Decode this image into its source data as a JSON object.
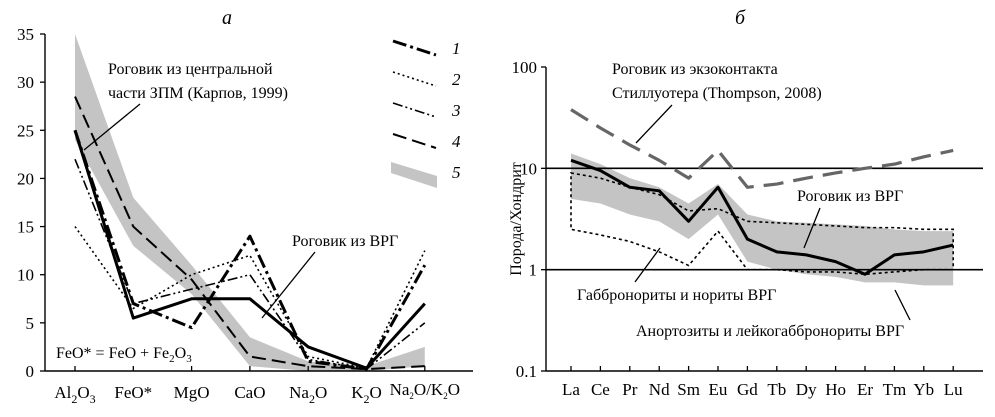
{
  "chart_data": [
    {
      "panel": "а",
      "type": "line",
      "categories": [
        "Al2O3",
        "FeO*",
        "MgO",
        "CaO",
        "Na2O",
        "K2O",
        "Na2O/K2O"
      ],
      "category_labels": [
        {
          "main": "Al",
          "sub": "2",
          "main2": "O",
          "sub2": "3"
        },
        {
          "main": "FeO*"
        },
        {
          "main": "MgO"
        },
        {
          "main": "CaO"
        },
        {
          "main": "Na",
          "sub": "2",
          "main2": "O"
        },
        {
          "main": "K",
          "sub": "2",
          "main2": "O"
        },
        {
          "main": "Na",
          "sub": "2",
          "main2": "O/K",
          "sub2": "2",
          "main3": "O"
        }
      ],
      "ylim": [
        0,
        35
      ],
      "yticks": [
        0,
        5,
        10,
        15,
        20,
        25,
        30,
        35
      ],
      "band_5": {
        "upper": [
          35,
          18,
          11,
          3.5,
          1,
          0.5,
          2.5
        ],
        "lower": [
          24,
          13,
          8,
          0.5,
          0,
          0,
          0.5
        ]
      },
      "series": [
        {
          "name": "1",
          "style": "dashdot-thick",
          "values": [
            25,
            7,
            4.5,
            14,
            1,
            0.2,
            11
          ]
        },
        {
          "name": "2",
          "style": "dotted",
          "values": [
            15,
            6.5,
            10,
            12,
            1.5,
            0.3,
            12.5
          ]
        },
        {
          "name": "3",
          "style": "dashdotdot",
          "values": [
            22,
            7,
            8.5,
            10,
            1.2,
            0.2,
            5
          ]
        },
        {
          "name": "4",
          "style": "longdash",
          "values": [
            28.5,
            15,
            9.5,
            1.5,
            0.5,
            0.2,
            0.5
          ]
        },
        {
          "name": "thick",
          "style": "solid-thick",
          "values": [
            25,
            5.5,
            7.5,
            7.5,
            2.5,
            0.3,
            7
          ]
        }
      ],
      "annotations": {
        "hornfels_central": "Роговик из центральной части ЗПМ (Карпов, 1999)",
        "hornfels_vrg": "Роговик из ВРГ",
        "formula": "FeO* = FeO + Fe2O3"
      },
      "legend": [
        "1",
        "2",
        "3",
        "4",
        "5"
      ]
    },
    {
      "panel": "б",
      "type": "line",
      "yscale": "log",
      "ylabel": "Порода/Хондрит",
      "categories": [
        "La",
        "Ce",
        "Pr",
        "Nd",
        "Sm",
        "Eu",
        "Gd",
        "Tb",
        "Dy",
        "Ho",
        "Er",
        "Tm",
        "Yb",
        "Lu"
      ],
      "ylim": [
        0.1,
        100
      ],
      "yticks": [
        "0.1",
        "1",
        "10",
        "100"
      ],
      "series": [
        {
          "name": "Роговик из ВРГ",
          "style": "solid-thick",
          "values": [
            12,
            9.5,
            6.5,
            6,
            3,
            6.5,
            2,
            1.5,
            1.4,
            1.2,
            0.9,
            1.4,
            1.5,
            1.75
          ]
        },
        {
          "name": "Роговик из экзоконтакта Стиллуотера (Thompson, 2008)",
          "style": "grey-dash",
          "values": [
            38,
            25,
            17,
            12,
            8,
            15,
            6.5,
            7,
            8,
            9,
            10,
            11,
            13,
            15
          ]
        }
      ],
      "gabbro_band": {
        "upper": [
          9,
          8,
          6.5,
          5.5,
          3.8,
          4,
          3,
          2.9,
          2.8,
          2.7,
          2.6,
          2.6,
          2.5,
          2.5
        ],
        "lower": [
          2.5,
          2.2,
          1.9,
          1.5,
          1.1,
          2.4,
          1,
          1,
          0.95,
          0.95,
          0.9,
          0.95,
          1,
          1
        ]
      },
      "grey_band": {
        "upper": [
          14,
          11,
          8,
          6.5,
          4.5,
          7,
          3.5,
          3,
          2.9,
          2.8,
          2.7,
          2.5,
          2.4,
          2.4
        ],
        "lower": [
          5,
          4.5,
          3.5,
          3,
          2,
          3.5,
          1.2,
          1,
          0.9,
          0.85,
          0.75,
          0.75,
          0.7,
          0.7
        ]
      },
      "reference_lines": [
        1,
        10
      ],
      "annotations": {
        "stillwater": [
          "Роговик из экзоконтакта",
          "Стиллуотера (Thompson, 2008)"
        ],
        "hornfels_vrg": "Роговик из ВРГ",
        "gabbronorites": "Габбронориты и нориты ВРГ",
        "anorthosites": "Анортозиты и лейкогаббронориты ВРГ"
      }
    }
  ]
}
